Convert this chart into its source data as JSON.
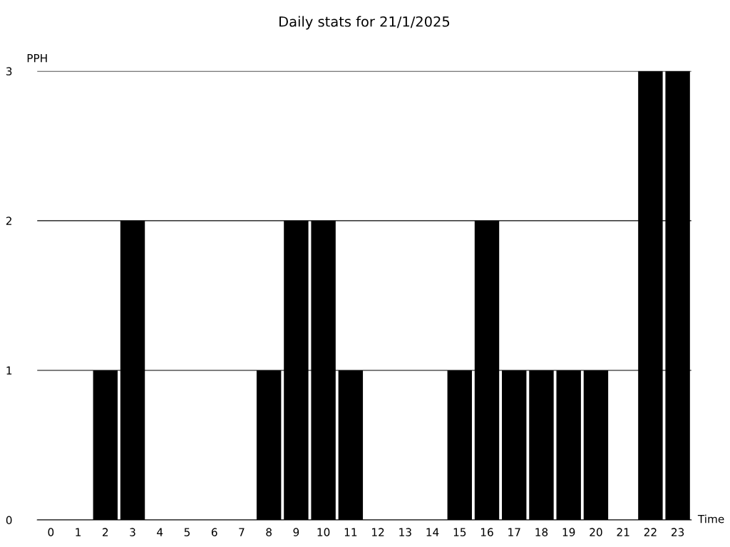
{
  "chart_data": {
    "type": "bar",
    "title": "Daily stats for 21/1/2025",
    "xlabel": "Time",
    "ylabel": "PPH",
    "categories": [
      "0",
      "1",
      "2",
      "3",
      "4",
      "5",
      "6",
      "7",
      "8",
      "9",
      "10",
      "11",
      "12",
      "13",
      "14",
      "15",
      "16",
      "17",
      "18",
      "19",
      "20",
      "21",
      "22",
      "23"
    ],
    "values": [
      0,
      0,
      1,
      2,
      0,
      0,
      0,
      0,
      1,
      2,
      2,
      1,
      0,
      0,
      0,
      1,
      2,
      1,
      1,
      1,
      1,
      0,
      3,
      3
    ],
    "color": "#000000",
    "ylim": [
      0,
      3
    ],
    "yticks": [
      0,
      1,
      2,
      3
    ],
    "grid": "y",
    "legend": false
  }
}
